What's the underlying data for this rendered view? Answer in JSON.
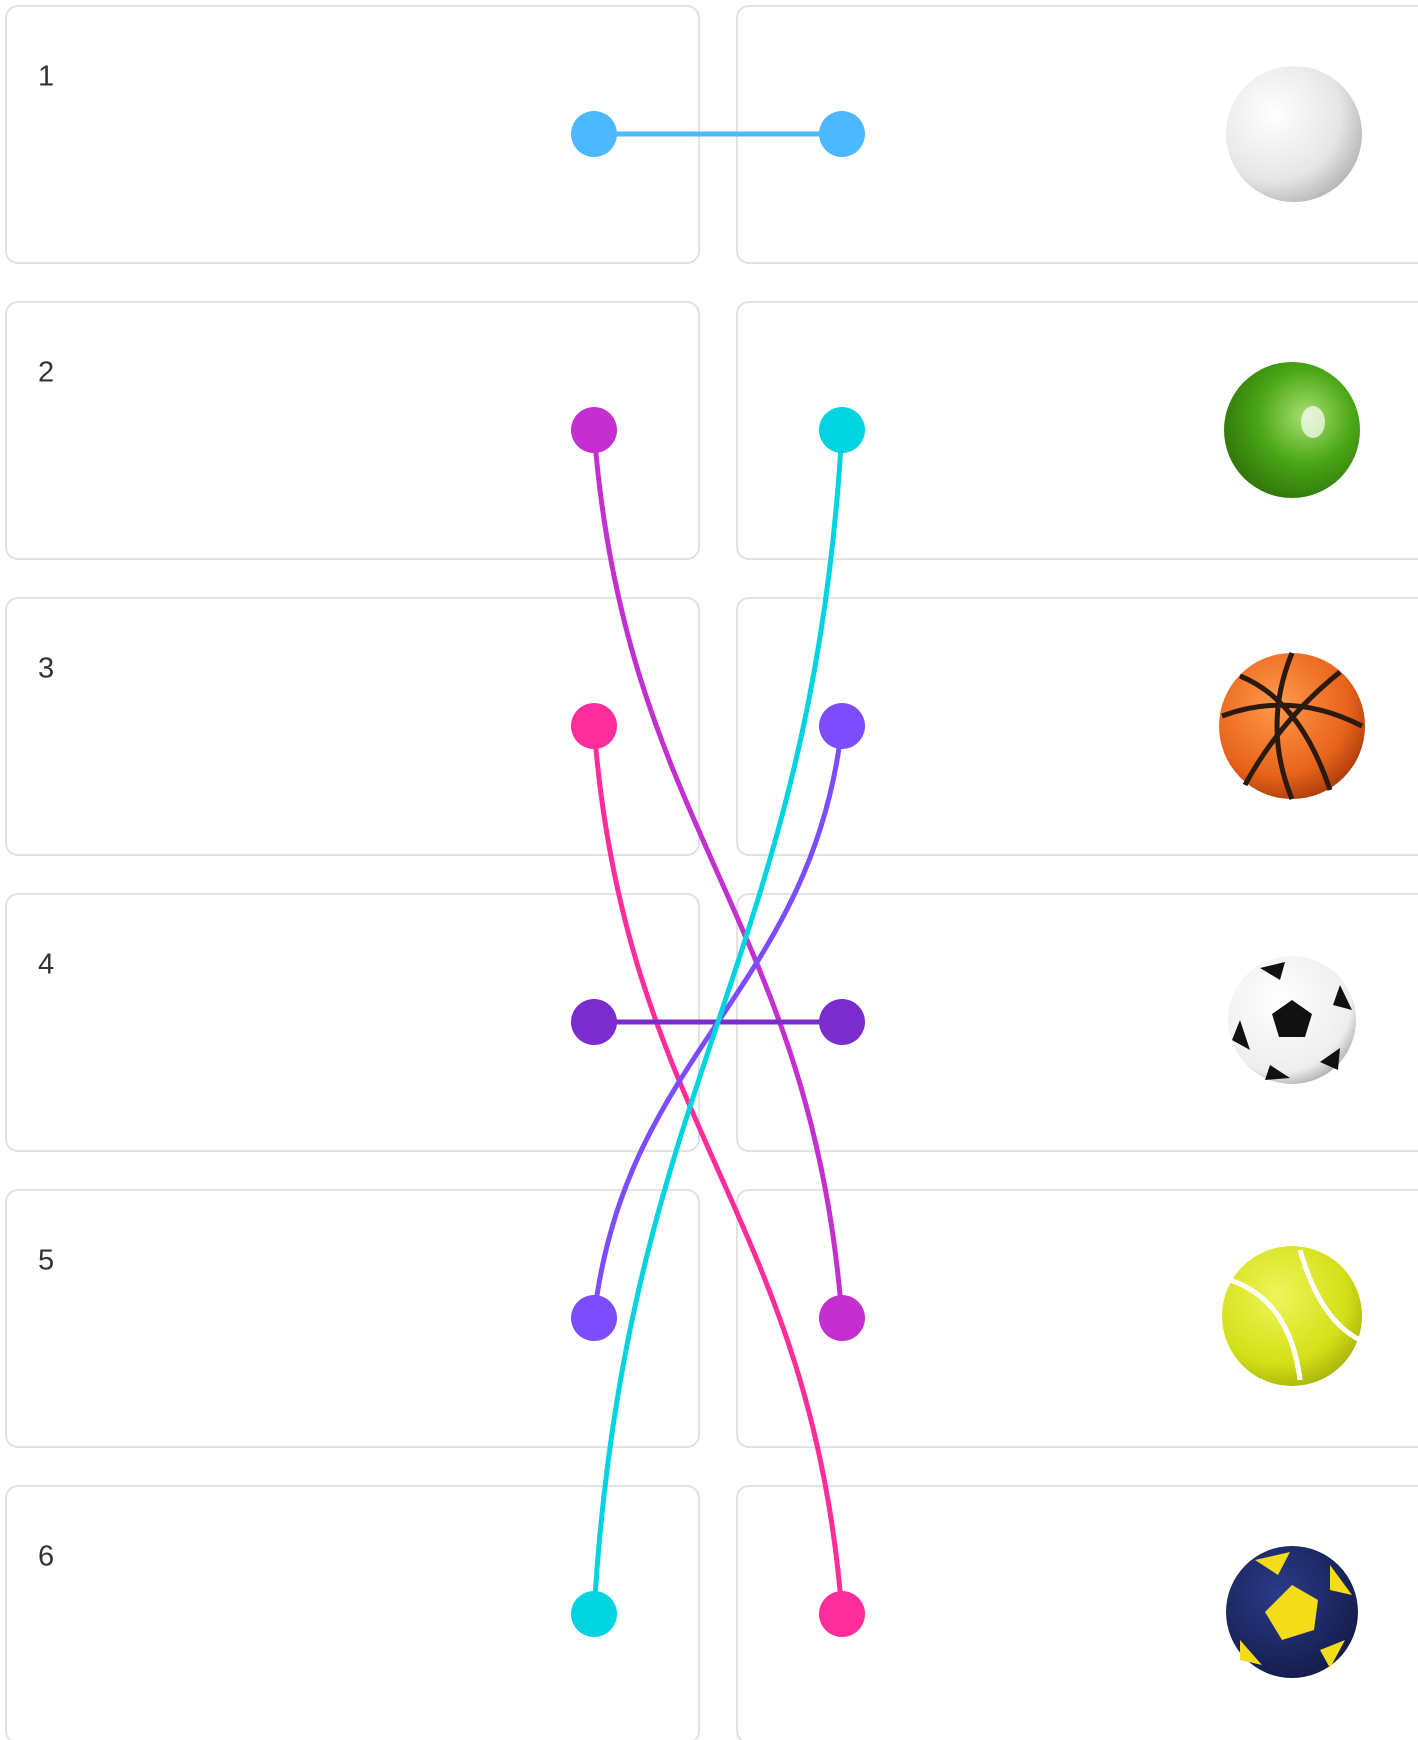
{
  "left_items": [
    {
      "label": "1"
    },
    {
      "label": "2"
    },
    {
      "label": "3"
    },
    {
      "label": "4"
    },
    {
      "label": "5"
    },
    {
      "label": "6"
    }
  ],
  "connections": [
    {
      "from": 1,
      "to": 1,
      "color": "#4cb8ff"
    },
    {
      "from": 2,
      "to": 5,
      "color": "#c42fcf"
    },
    {
      "from": 3,
      "to": 6,
      "color": "#ff2d9b"
    },
    {
      "from": 4,
      "to": 4,
      "color": "#7b2ccc"
    },
    {
      "from": 5,
      "to": 3,
      "color": "#7c4dff"
    },
    {
      "from": 6,
      "to": 2,
      "color": "#00d4e0"
    }
  ]
}
